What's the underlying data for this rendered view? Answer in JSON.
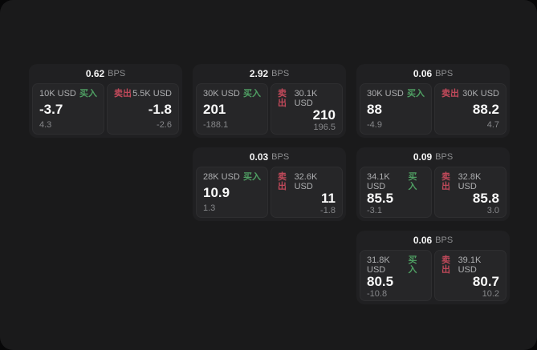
{
  "labels": {
    "bps": "BPS",
    "buy": "买入",
    "sell": "卖出"
  },
  "colors": {
    "window_bg": "#1a1a1b",
    "card_bg": "#202022",
    "panel_bg": "#262628",
    "buy_green": "#4f9f63",
    "sell_red": "#c0495a",
    "price_text": "#fafafa",
    "muted_text": "#8d8e90"
  },
  "cards": [
    {
      "bps": "0.62",
      "buy": {
        "amount": "10K USD",
        "value": "-3.7",
        "sub": "4.3"
      },
      "sell": {
        "amount": "5.5K USD",
        "value": "-1.8",
        "sub": "-2.6"
      }
    },
    {
      "bps": "2.92",
      "buy": {
        "amount": "30K USD",
        "value": "201",
        "sub": "-188.1"
      },
      "sell": {
        "amount": "30.1K USD",
        "value": "210",
        "sub": "196.5"
      }
    },
    {
      "bps": "0.06",
      "buy": {
        "amount": "30K USD",
        "value": "88",
        "sub": "-4.9"
      },
      "sell": {
        "amount": "30K USD",
        "value": "88.2",
        "sub": "4.7"
      }
    },
    {
      "bps": "0.03",
      "buy": {
        "amount": "28K USD",
        "value": "10.9",
        "sub": "1.3"
      },
      "sell": {
        "amount": "32.6K USD",
        "value": "11",
        "sub": "-1.8"
      }
    },
    {
      "bps": "0.09",
      "buy": {
        "amount": "34.1K USD",
        "value": "85.5",
        "sub": "-3.1"
      },
      "sell": {
        "amount": "32.8K USD",
        "value": "85.8",
        "sub": "3.0"
      }
    },
    {
      "bps": "0.06",
      "buy": {
        "amount": "31.8K USD",
        "value": "80.5",
        "sub": "-10.8"
      },
      "sell": {
        "amount": "39.1K USD",
        "value": "80.7",
        "sub": "10.2"
      }
    }
  ]
}
